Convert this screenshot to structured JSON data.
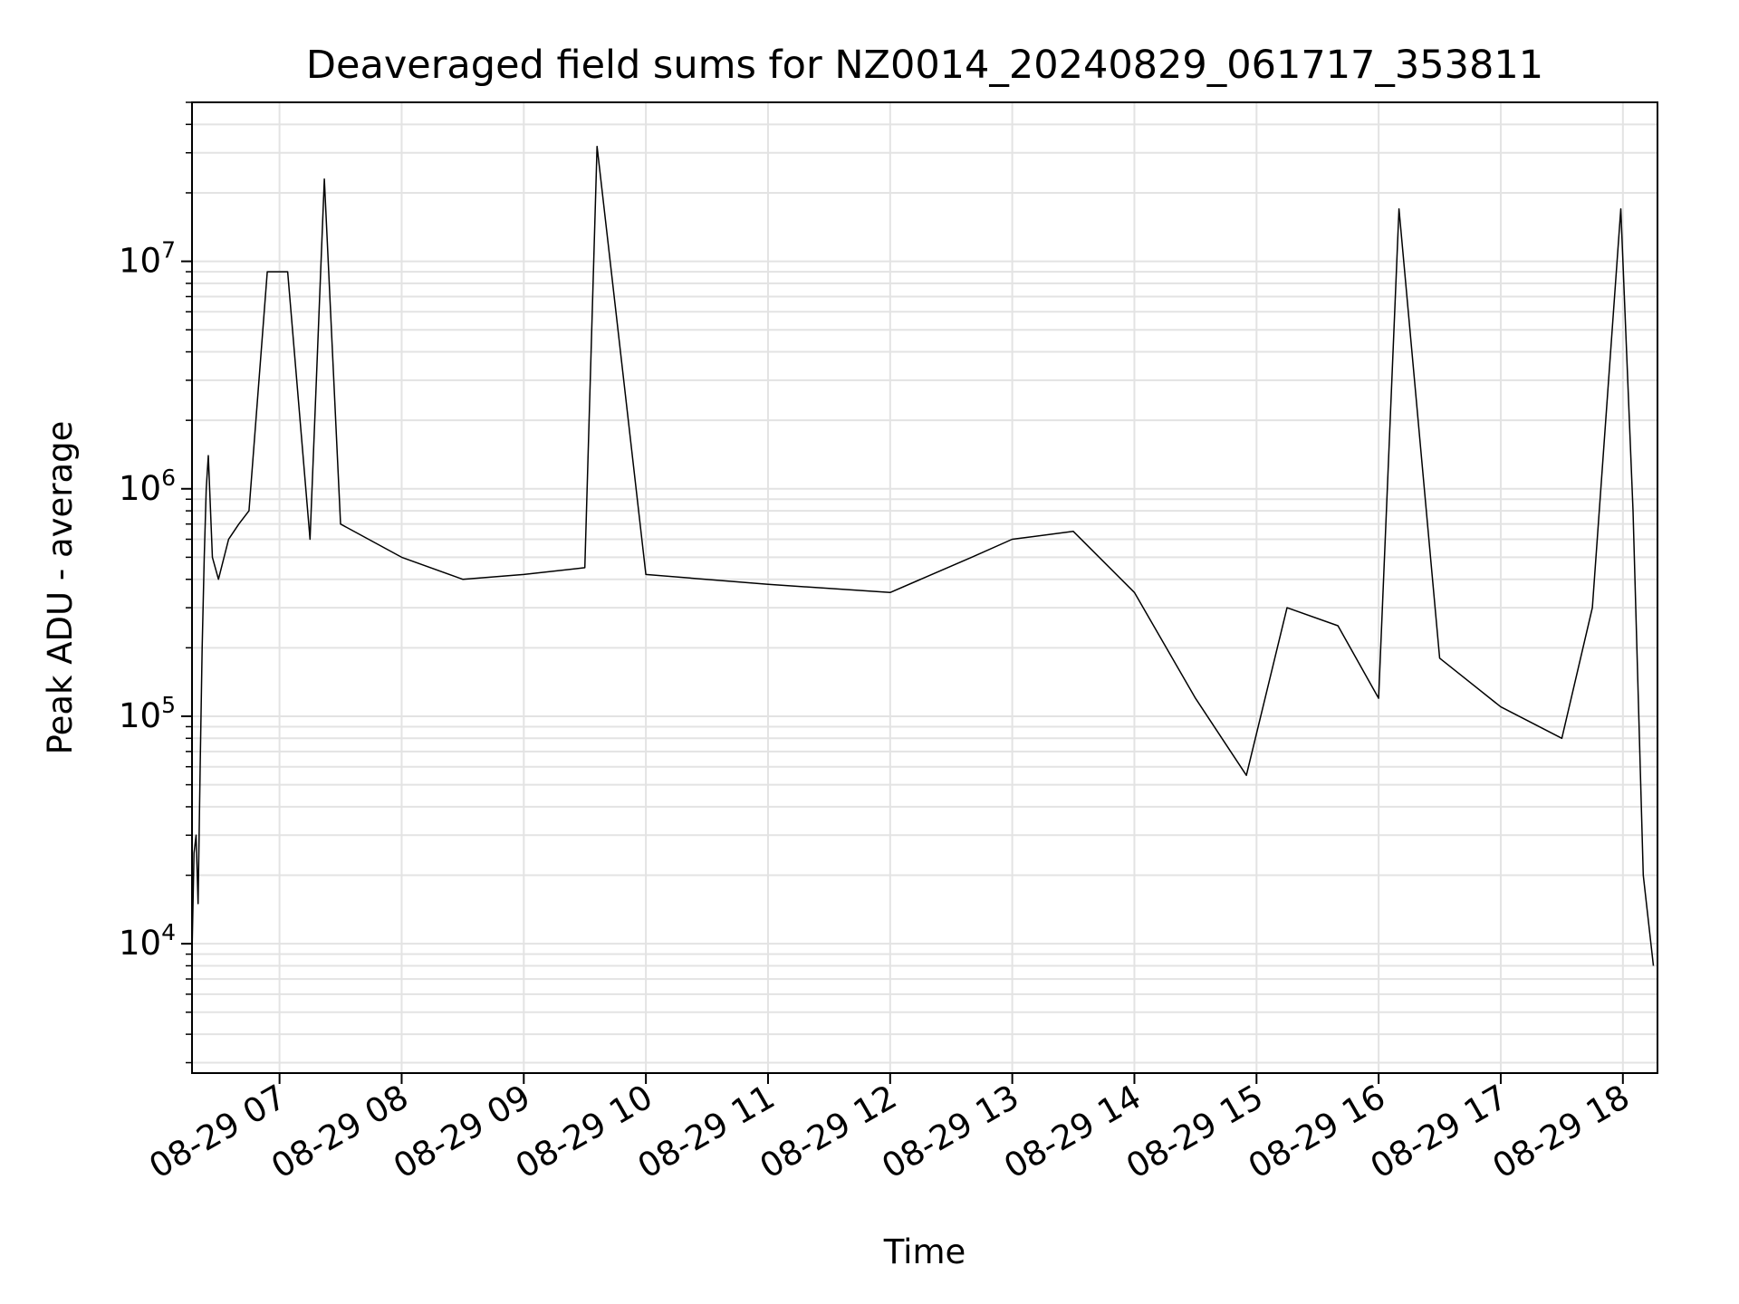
{
  "chart_data": {
    "type": "line",
    "title": "Deaveraged field sums for NZ0014_20240829_061717_353811",
    "xlabel": "Time",
    "ylabel": "Peak ADU - average",
    "x_ticks": [
      "08-29 07",
      "08-29 08",
      "08-29 09",
      "08-29 10",
      "08-29 11",
      "08-29 12",
      "08-29 13",
      "08-29 14",
      "08-29 15",
      "08-29 16",
      "08-29 17",
      "08-29 18"
    ],
    "y_ticks": [
      {
        "base": "10",
        "exp": "4",
        "value": 10000
      },
      {
        "base": "10",
        "exp": "5",
        "value": 100000
      },
      {
        "base": "10",
        "exp": "6",
        "value": 1000000
      },
      {
        "base": "10",
        "exp": "7",
        "value": 10000000
      }
    ],
    "xlim": [
      "2024-08-29 06:17",
      "2024-08-29 18:17"
    ],
    "ylim": [
      2700,
      50000000
    ],
    "y_scale": "log",
    "grid": true,
    "line_color": "#000000",
    "series": [
      {
        "values": [
          [
            "2024-08-29 06:17",
            9000
          ],
          [
            "2024-08-29 06:18",
            25000
          ],
          [
            "2024-08-29 06:19",
            30000
          ],
          [
            "2024-08-29 06:20",
            15000
          ],
          [
            "2024-08-29 06:21",
            60000
          ],
          [
            "2024-08-29 06:22",
            200000
          ],
          [
            "2024-08-29 06:23",
            500000
          ],
          [
            "2024-08-29 06:24",
            1000000
          ],
          [
            "2024-08-29 06:25",
            1400000
          ],
          [
            "2024-08-29 06:27",
            500000
          ],
          [
            "2024-08-29 06:30",
            400000
          ],
          [
            "2024-08-29 06:35",
            600000
          ],
          [
            "2024-08-29 06:40",
            700000
          ],
          [
            "2024-08-29 06:45",
            800000
          ],
          [
            "2024-08-29 06:54",
            9000000
          ],
          [
            "2024-08-29 07:04",
            9000000
          ],
          [
            "2024-08-29 07:15",
            600000
          ],
          [
            "2024-08-29 07:22",
            23000000
          ],
          [
            "2024-08-29 07:30",
            700000
          ],
          [
            "2024-08-29 08:00",
            500000
          ],
          [
            "2024-08-29 08:30",
            400000
          ],
          [
            "2024-08-29 09:00",
            420000
          ],
          [
            "2024-08-29 09:30",
            450000
          ],
          [
            "2024-08-29 09:36",
            32000000
          ],
          [
            "2024-08-29 10:00",
            420000
          ],
          [
            "2024-08-29 11:00",
            380000
          ],
          [
            "2024-08-29 12:00",
            350000
          ],
          [
            "2024-08-29 12:40",
            500000
          ],
          [
            "2024-08-29 13:00",
            600000
          ],
          [
            "2024-08-29 13:30",
            650000
          ],
          [
            "2024-08-29 14:00",
            350000
          ],
          [
            "2024-08-29 14:30",
            120000
          ],
          [
            "2024-08-29 14:55",
            55000
          ],
          [
            "2024-08-29 15:15",
            300000
          ],
          [
            "2024-08-29 15:40",
            250000
          ],
          [
            "2024-08-29 16:00",
            120000
          ],
          [
            "2024-08-29 16:10",
            17000000
          ],
          [
            "2024-08-29 16:30",
            180000
          ],
          [
            "2024-08-29 17:00",
            110000
          ],
          [
            "2024-08-29 17:30",
            80000
          ],
          [
            "2024-08-29 17:45",
            300000
          ],
          [
            "2024-08-29 17:59",
            17000000
          ],
          [
            "2024-08-29 18:05",
            800000
          ],
          [
            "2024-08-29 18:10",
            20000
          ],
          [
            "2024-08-29 18:15",
            8000
          ]
        ]
      }
    ]
  }
}
